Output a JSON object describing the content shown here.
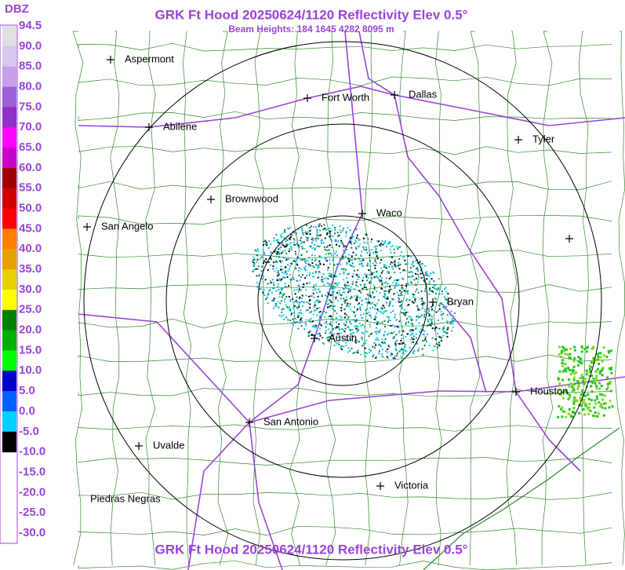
{
  "header": {
    "title": "GRK Ft Hood 20250624/1120 Reflectivity Elev 0.5°",
    "subtitle": "Beam Heights: 184 1645 4282 8095 m"
  },
  "legend": {
    "title": "DBZ",
    "labels": [
      "94.5",
      "90.0",
      "85.0",
      "80.0",
      "75.0",
      "70.0",
      "65.0",
      "60.0",
      "55.0",
      "50.0",
      "45.0",
      "40.0",
      "35.0",
      "30.0",
      "25.0",
      "20.0",
      "15.0",
      "10.0",
      "5.0",
      "0.0",
      "-5.0",
      "-10.0",
      "-15.0",
      "-20.0",
      "-25.0",
      "-30.0"
    ]
  },
  "cities": [
    {
      "name": "Aspermont"
    },
    {
      "name": "Fort Worth"
    },
    {
      "name": "Dallas"
    },
    {
      "name": "Abilene"
    },
    {
      "name": "Tyler"
    },
    {
      "name": "Brownwood"
    },
    {
      "name": "Waco"
    },
    {
      "name": "San Angelo"
    },
    {
      "name": "Bryan"
    },
    {
      "name": "Austin"
    },
    {
      "name": "Houston"
    },
    {
      "name": "San Antonio"
    },
    {
      "name": "Uvalde"
    },
    {
      "name": "Victoria"
    },
    {
      "name": "Piedras Negras"
    }
  ],
  "footer": {
    "title": "GRK Ft Hood 20250624/1120 Reflectivity Elev 0.5°"
  }
}
